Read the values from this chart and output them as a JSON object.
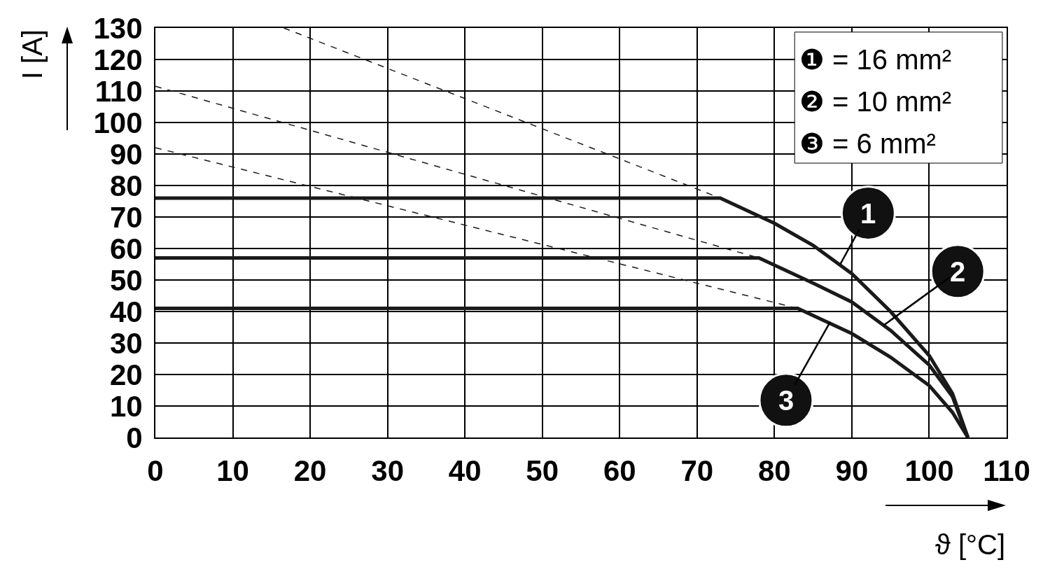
{
  "chart_data": {
    "type": "line",
    "xlabel": "ϑ [°C]",
    "ylabel": "I [A]",
    "series": [
      {
        "color": "#1a1a1a",
        "line_style": "solid",
        "x": [
          0,
          73,
          80,
          85,
          90,
          95,
          100,
          103,
          105
        ],
        "values": [
          76,
          76,
          68,
          61,
          52,
          40,
          26,
          14,
          0
        ]
      },
      {
        "color": "#1a1a1a",
        "line_style": "solid",
        "x": [
          0,
          78,
          85,
          90,
          95,
          100,
          103,
          105
        ],
        "values": [
          57,
          57,
          49,
          43,
          34,
          23,
          13,
          0
        ]
      },
      {
        "color": "#1a1a1a",
        "line_style": "solid",
        "x": [
          0,
          83,
          90,
          95,
          100,
          103,
          105
        ],
        "values": [
          41,
          41,
          33,
          25.5,
          16.5,
          8,
          0
        ]
      },
      {
        "color": "#1a1a1a",
        "line_style": "dashed",
        "x": [
          16.6,
          73
        ],
        "values": [
          130,
          76
        ]
      },
      {
        "color": "#1a1a1a",
        "line_style": "dashed",
        "x": [
          0,
          78
        ],
        "values": [
          111.5,
          57
        ]
      },
      {
        "color": "#1a1a1a",
        "line_style": "dashed",
        "x": [
          0,
          83
        ],
        "values": [
          92,
          41
        ]
      }
    ],
    "xlim": [
      0,
      110
    ],
    "xticks": [
      0,
      10,
      20,
      30,
      40,
      50,
      60,
      70,
      80,
      90,
      100,
      110
    ],
    "ylim": [
      0,
      130
    ],
    "yticks": [
      0,
      10,
      20,
      30,
      40,
      50,
      60,
      70,
      80,
      90,
      100,
      110,
      120,
      130
    ],
    "grid": true,
    "marker": "none",
    "annotations": [
      "❶ = 16 mm²",
      "❷ = 10 mm²",
      "❸ = 6 mm²",
      {
        "text": "1",
        "x": 88.5,
        "y": 55
      },
      {
        "text": "2",
        "x": 94.1,
        "y": 35.6
      },
      {
        "text": "3",
        "x": 87.2,
        "y": 36.7
      }
    ]
  }
}
